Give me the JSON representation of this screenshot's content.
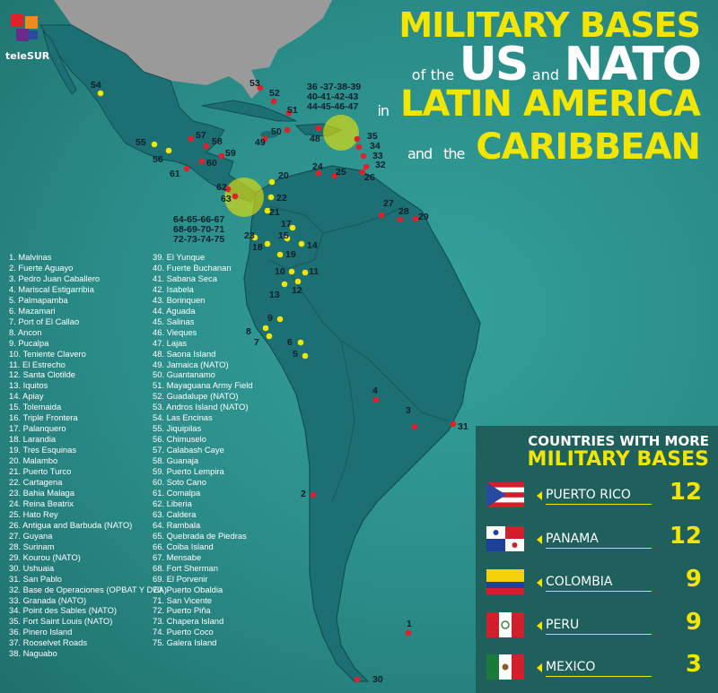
{
  "brand": {
    "name": "teleSUR"
  },
  "title": {
    "line1": "MILITARY BASES",
    "of": "of",
    "the": "the",
    "us": "US",
    "and": "and",
    "nato": "NATO",
    "in": "in",
    "line3": "LATIN AMERICA",
    "and2": "and",
    "the2": "the",
    "line4": "CARIBBEAN"
  },
  "legend": [
    "1. Malvinas",
    "2. Fuerte Aguayo",
    "3. Pedro Juan Caballero",
    "4. Mariscal Estigarribia",
    "5. Palmapamba",
    "6. Mazamari",
    "7. Port of El Callao",
    "8. Ancon",
    "9. Pucalpa",
    "10. Teniente Clavero",
    "11. El Estrecho",
    "12. Santa Clotilde",
    "13. Iquitos",
    "14. Apiay",
    "15. Tolemaida",
    "16. Triple Frontera",
    "17. Palanquero",
    "18. Larandia",
    "19. Tres Esquinas",
    "20. Malambo",
    "21. Puerto Turco",
    "22. Cartagena",
    "23. Bahia Malaga",
    "24. Reina Beatrix",
    "25. Hato Rey",
    "26. Antigua and Barbuda (NATO)",
    "27. Guyana",
    "28. Surinam",
    "29. Kourou (NATO)",
    "30. Ushuaia",
    "31. San Pablo",
    "32. Base de Operaciones (OPBAT Y DEA)",
    "33. Granada (NATO)",
    "34. Point des Sables (NATO)",
    "35. Fort Saint Louis (NATO)",
    "36. Pinero Island",
    "37. Rooselvet Roads",
    "38. Naguabo",
    "39. El Yunque",
    "40. Fuerte Buchanan",
    "41. Sabana Seca",
    "42. Isabela",
    "43. Borinquen",
    "44. Aguada",
    "45. Salinas",
    "46. Vieques",
    "47. Lajas",
    "48. Saona Island",
    "49. Jamaica (NATO)",
    "50. Guantanamo",
    "51. Mayaguana Army Field",
    "52. Guadalupe (NATO)",
    "53. Andros Island (NATO)",
    "54. Las Encinas",
    "55. Jiquipilas",
    "56. Chimuselo",
    "57. Calabash Caye",
    "58. Guanaja",
    "59. Puerto Lempira",
    "60. Soto Cano",
    "61. Comalpa",
    "62. Liberia",
    "63. Caldera",
    "64. Rambala",
    "65. Quebrada de Piedras",
    "66. Coiba Island",
    "67. Mensabe",
    "68. Fort Sherman",
    "69. El Porvenir",
    "70. Puerto Obaldia",
    "71. San Vicente",
    "72. Puerto Piña",
    "73. Chapera Island",
    "74. Puerto Coco",
    "75. Galera Island"
  ],
  "map_labels": [
    {
      "t": "1"
    },
    {
      "t": "2"
    },
    {
      "t": "3"
    },
    {
      "t": "4"
    },
    {
      "t": "5"
    },
    {
      "t": "6"
    },
    {
      "t": "7"
    },
    {
      "t": "8"
    },
    {
      "t": "9"
    },
    {
      "t": "10"
    },
    {
      "t": "11"
    },
    {
      "t": "12"
    },
    {
      "t": "13"
    },
    {
      "t": "14"
    },
    {
      "t": "15"
    },
    {
      "t": "17"
    },
    {
      "t": "18"
    },
    {
      "t": "19"
    },
    {
      "t": "20"
    },
    {
      "t": "21"
    },
    {
      "t": "22"
    },
    {
      "t": "23"
    },
    {
      "t": "24"
    },
    {
      "t": "25"
    },
    {
      "t": "26"
    },
    {
      "t": "27"
    },
    {
      "t": "28"
    },
    {
      "t": "29"
    },
    {
      "t": "30"
    },
    {
      "t": "31"
    },
    {
      "t": "32"
    },
    {
      "t": "33"
    },
    {
      "t": "34"
    },
    {
      "t": "35"
    },
    {
      "t": "48"
    },
    {
      "t": "49"
    },
    {
      "t": "50"
    },
    {
      "t": "51"
    },
    {
      "t": "52"
    },
    {
      "t": "53"
    },
    {
      "t": "54"
    },
    {
      "t": "55"
    },
    {
      "t": "56"
    },
    {
      "t": "57"
    },
    {
      "t": "58"
    },
    {
      "t": "59"
    },
    {
      "t": "60"
    },
    {
      "t": "61"
    },
    {
      "t": "62"
    },
    {
      "t": "63"
    }
  ],
  "group_labels": {
    "caribbean": [
      "36 -37-38-39",
      "40-41-42-43",
      "44-45-46-47"
    ],
    "panama": [
      "64-65-66-67",
      "68-69-70-71",
      "72-73-74-75"
    ]
  },
  "countries": {
    "heading1": "COUNTRIES WITH MORE",
    "heading2": "MILITARY BASES",
    "rows": [
      {
        "name": "PUERTO RICO",
        "count": "12",
        "flag": "puerto-rico-flag"
      },
      {
        "name": "PANAMA",
        "count": "12",
        "flag": "panama-flag"
      },
      {
        "name": "COLOMBIA",
        "count": "9",
        "flag": "colombia-flag"
      },
      {
        "name": "PERU",
        "count": "9",
        "flag": "peru-flag"
      },
      {
        "name": "MEXICO",
        "count": "3",
        "flag": "mexico-flag"
      }
    ]
  },
  "colors": {
    "ocean": "#2b8a87",
    "land": "#1c6f73",
    "usa": "#9a9a9a",
    "accent": "#f2e600",
    "red_dot": "#e0202a",
    "yellow_dot": "#f2e600"
  }
}
